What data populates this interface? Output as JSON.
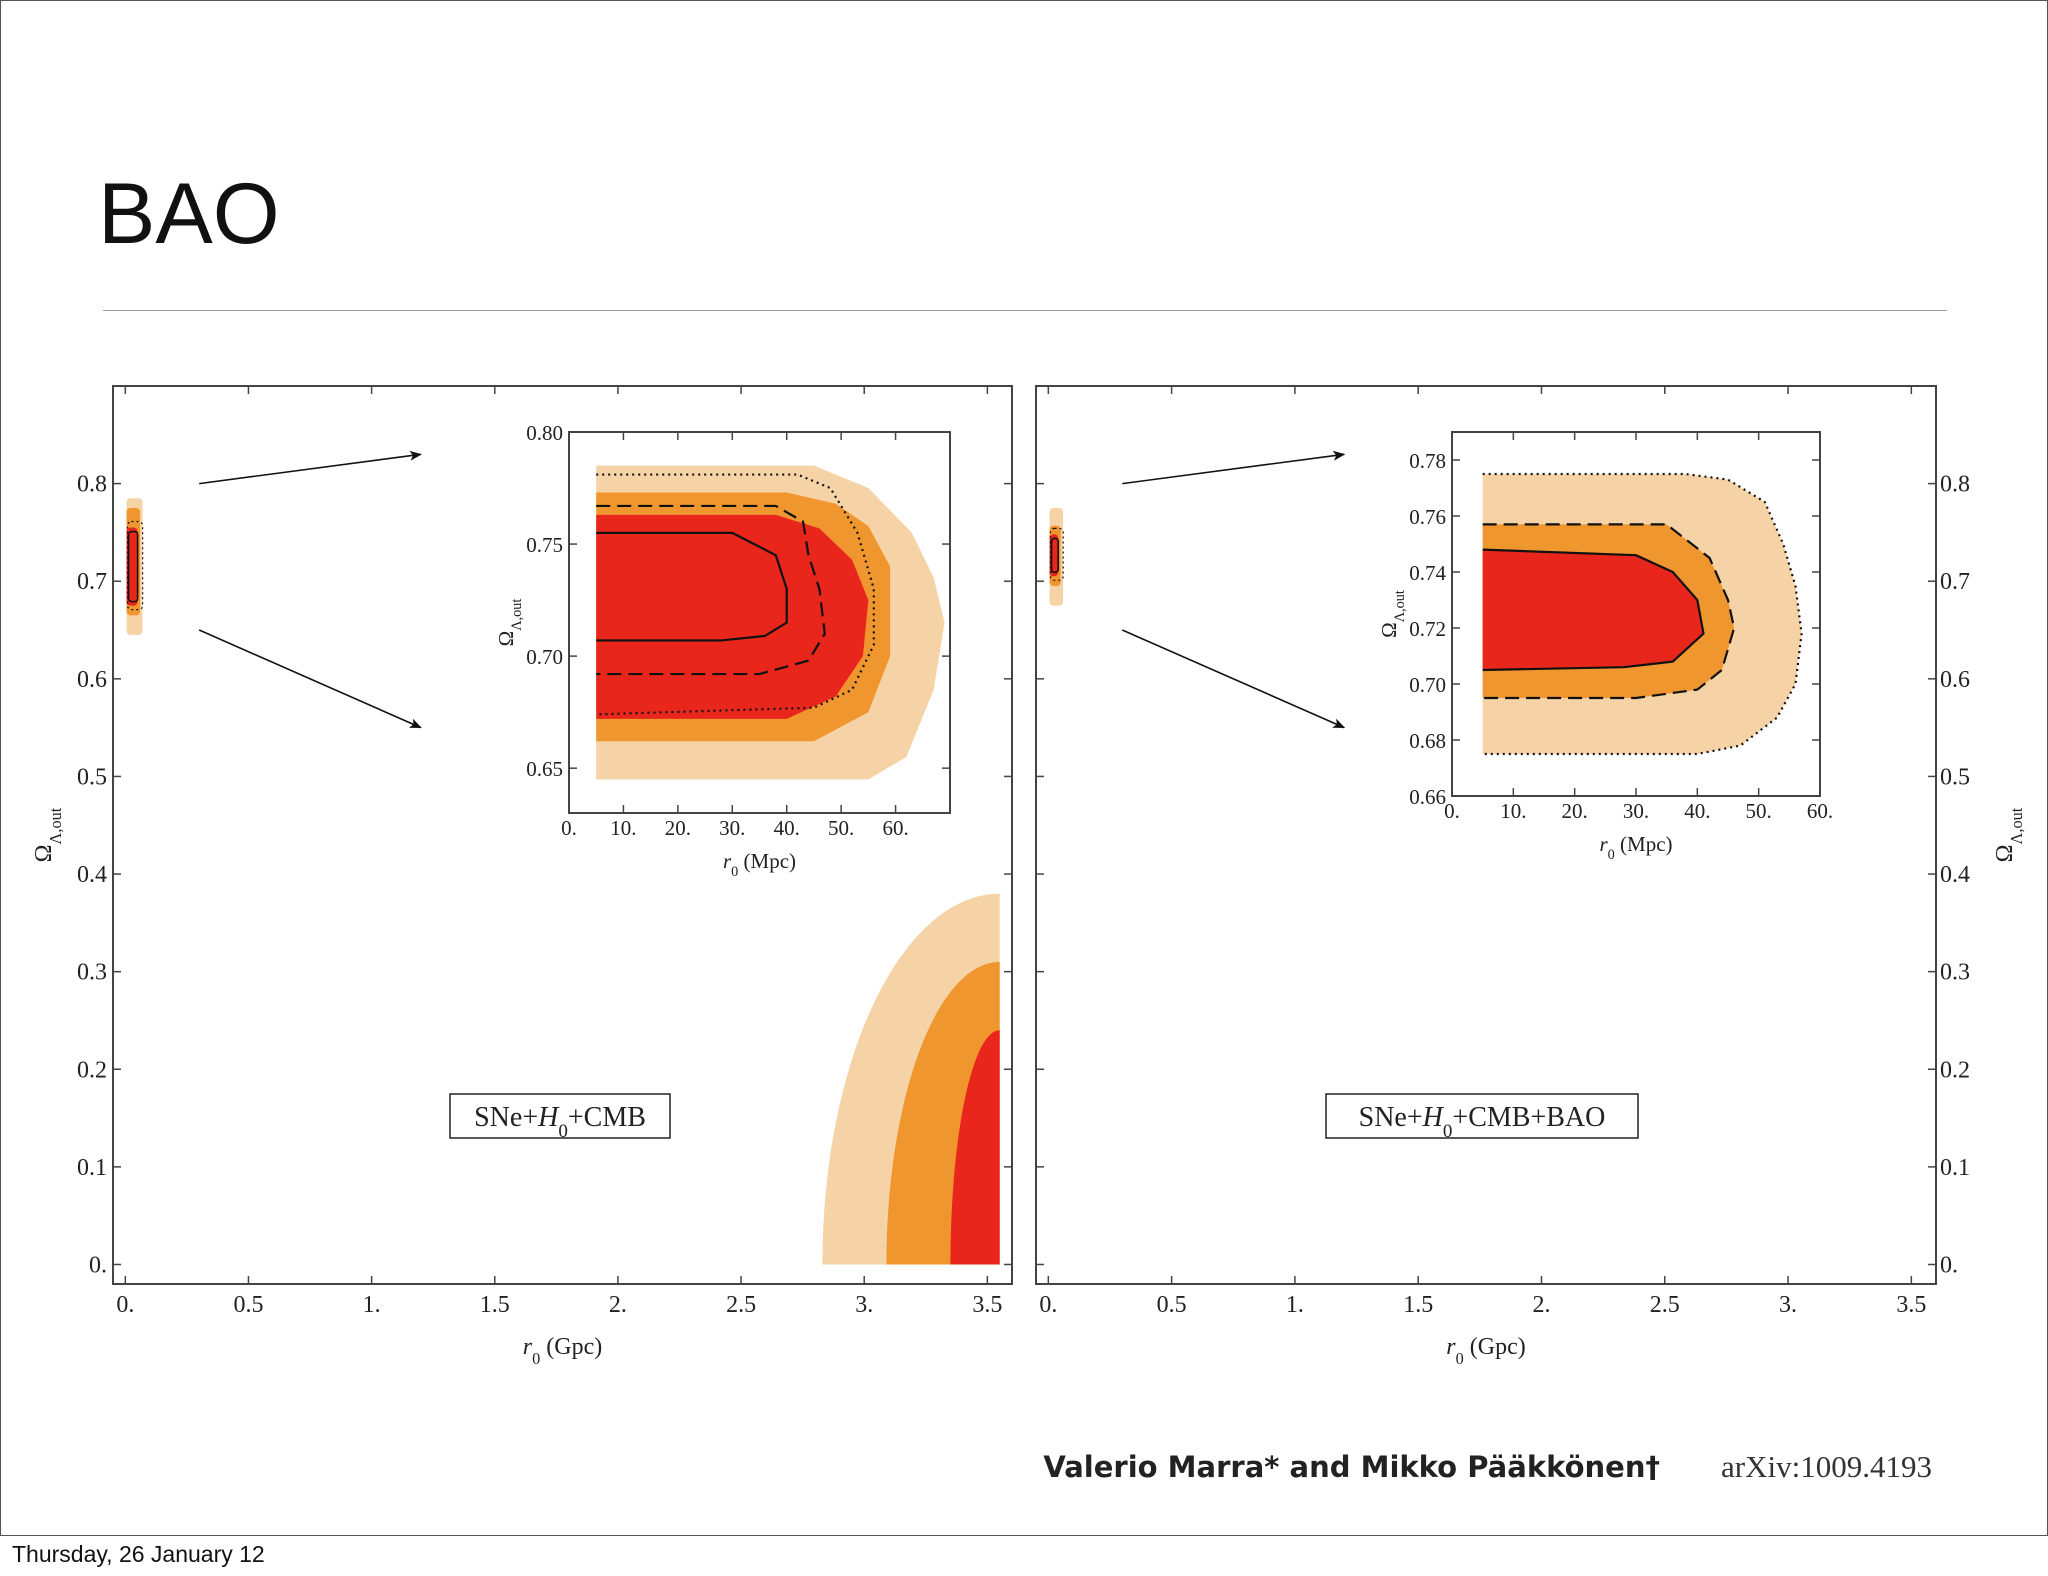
{
  "slide": {
    "title": "BAO",
    "footer_date": "Thursday, 26 January 12"
  },
  "credit": {
    "authors": "Valerio Marra* and Mikko Pääkkönen†",
    "arxiv": "arXiv:1009.4193"
  },
  "colors": {
    "inner": "#e8261c",
    "middle": "#f0962e",
    "outer": "#f6d3a6",
    "frame": "#444444",
    "arrow": "#111111"
  },
  "chart_data": [
    {
      "type": "contour",
      "id": "left-main",
      "label": "SNe+H0+CMB",
      "label_parts": [
        "SNe+",
        "H",
        "0",
        "+CMB"
      ],
      "xlabel": "r0 (Gpc)",
      "xlabel_parts": [
        "r",
        "0",
        " (Gpc)"
      ],
      "ylabel": "ΩΛ,out",
      "ylabel_parts": [
        "Ω",
        "Λ,out"
      ],
      "xlim": [
        -0.05,
        3.6
      ],
      "ylim": [
        -0.02,
        0.9
      ],
      "xticks": [
        0,
        0.5,
        1,
        1.5,
        2,
        2.5,
        3,
        3.5
      ],
      "xtick_labels": [
        "0.",
        "0.5",
        "1.",
        "1.5",
        "2.",
        "2.5",
        "3.",
        "3.5"
      ],
      "yticks": [
        0,
        0.1,
        0.2,
        0.3,
        0.4,
        0.5,
        0.6,
        0.7,
        0.8
      ],
      "ytick_labels": [
        "0.",
        "0.1",
        "0.2",
        "0.3",
        "0.4",
        "0.5",
        "0.6",
        "0.7",
        "0.8"
      ],
      "regions": [
        {
          "level": "outer",
          "kind": "box",
          "x": [
            0.005,
            0.07
          ],
          "y": [
            0.645,
            0.785
          ]
        },
        {
          "level": "middle",
          "kind": "box",
          "x": [
            0.005,
            0.06
          ],
          "y": [
            0.665,
            0.775
          ]
        },
        {
          "level": "inner",
          "kind": "box",
          "x": [
            0.005,
            0.05
          ],
          "y": [
            0.675,
            0.755
          ]
        },
        {
          "level": "outer",
          "kind": "quarter",
          "cx": 3.55,
          "cy": 0.0,
          "rx": 0.72,
          "ry": 0.38
        },
        {
          "level": "middle",
          "kind": "quarter",
          "cx": 3.55,
          "cy": 0.0,
          "rx": 0.46,
          "ry": 0.31
        },
        {
          "level": "inner",
          "kind": "quarter",
          "cx": 3.55,
          "cy": 0.0,
          "rx": 0.2,
          "ry": 0.24
        }
      ],
      "arrows": [
        {
          "from": [
            0.3,
            0.8
          ],
          "to": [
            1.2,
            0.83
          ]
        },
        {
          "from": [
            0.3,
            0.65
          ],
          "to": [
            1.2,
            0.55
          ]
        }
      ]
    },
    {
      "type": "contour",
      "id": "left-inset",
      "xlabel": "r0 (Mpc)",
      "xlabel_parts": [
        "r",
        "0",
        " (Mpc)"
      ],
      "ylabel": "ΩΛ,out",
      "ylabel_parts": [
        "Ω",
        "Λ,out"
      ],
      "xlim": [
        0,
        70
      ],
      "ylim": [
        0.63,
        0.8
      ],
      "xticks": [
        0,
        10,
        20,
        30,
        40,
        50,
        60
      ],
      "xtick_labels": [
        "0.",
        "10.",
        "20.",
        "30.",
        "40.",
        "50.",
        "60."
      ],
      "yticks": [
        0.65,
        0.7,
        0.75,
        0.8
      ],
      "ytick_labels": [
        "0.65",
        "0.70",
        "0.75",
        "0.80"
      ],
      "filled": [
        {
          "level": "outer",
          "points": [
            [
              5,
              0.785
            ],
            [
              45,
              0.785
            ],
            [
              55,
              0.775
            ],
            [
              63,
              0.755
            ],
            [
              67,
              0.735
            ],
            [
              69,
              0.715
            ],
            [
              67,
              0.685
            ],
            [
              62,
              0.655
            ],
            [
              55,
              0.645
            ],
            [
              5,
              0.645
            ]
          ]
        },
        {
          "level": "middle",
          "points": [
            [
              5,
              0.773
            ],
            [
              40,
              0.773
            ],
            [
              49,
              0.768
            ],
            [
              55,
              0.758
            ],
            [
              59,
              0.74
            ],
            [
              59,
              0.7
            ],
            [
              55,
              0.675
            ],
            [
              45,
              0.662
            ],
            [
              5,
              0.662
            ]
          ]
        },
        {
          "level": "inner",
          "points": [
            [
              5,
              0.763
            ],
            [
              38,
              0.763
            ],
            [
              46,
              0.757
            ],
            [
              52,
              0.743
            ],
            [
              55,
              0.725
            ],
            [
              54,
              0.7
            ],
            [
              49,
              0.682
            ],
            [
              40,
              0.672
            ],
            [
              5,
              0.672
            ]
          ]
        }
      ],
      "lines": [
        {
          "style": "solid",
          "points": [
            [
              5,
              0.755
            ],
            [
              30,
              0.755
            ],
            [
              38,
              0.745
            ],
            [
              40,
              0.73
            ],
            [
              40,
              0.715
            ],
            [
              36,
              0.709
            ],
            [
              28,
              0.707
            ],
            [
              5,
              0.707
            ]
          ]
        },
        {
          "style": "dashed",
          "points": [
            [
              5,
              0.767
            ],
            [
              38,
              0.767
            ],
            [
              43,
              0.76
            ],
            [
              44,
              0.745
            ],
            [
              46,
              0.73
            ],
            [
              47,
              0.71
            ],
            [
              44,
              0.698
            ],
            [
              35,
              0.692
            ],
            [
              5,
              0.692
            ]
          ]
        },
        {
          "style": "dotted",
          "points": [
            [
              5,
              0.781
            ],
            [
              42,
              0.781
            ],
            [
              48,
              0.775
            ],
            [
              53,
              0.755
            ],
            [
              56,
              0.73
            ],
            [
              56,
              0.705
            ],
            [
              52,
              0.685
            ],
            [
              45,
              0.677
            ],
            [
              5,
              0.674
            ]
          ]
        }
      ]
    },
    {
      "type": "contour",
      "id": "right-main",
      "label": "SNe+H0+CMB+BAO",
      "label_parts": [
        "SNe+",
        "H",
        "0",
        "+CMB+BAO"
      ],
      "xlabel": "r0 (Gpc)",
      "xlabel_parts": [
        "r",
        "0",
        " (Gpc)"
      ],
      "ylabel": "ΩΛ,out",
      "ylabel_parts": [
        "Ω",
        "Λ,out"
      ],
      "xlim": [
        -0.05,
        3.6
      ],
      "ylim": [
        -0.02,
        0.9
      ],
      "xticks": [
        0,
        0.5,
        1,
        1.5,
        2,
        2.5,
        3,
        3.5
      ],
      "xtick_labels": [
        "0.",
        "0.5",
        "1.",
        "1.5",
        "2.",
        "2.5",
        "3.",
        "3.5"
      ],
      "yticks": [
        0,
        0.1,
        0.2,
        0.3,
        0.4,
        0.5,
        0.6,
        0.7,
        0.8
      ],
      "ytick_labels": [
        "0.",
        "0.1",
        "0.2",
        "0.3",
        "0.4",
        "0.5",
        "0.6",
        "0.7",
        "0.8"
      ],
      "regions": [
        {
          "level": "outer",
          "kind": "box",
          "x": [
            0.005,
            0.06
          ],
          "y": [
            0.675,
            0.775
          ]
        },
        {
          "level": "middle",
          "kind": "box",
          "x": [
            0.005,
            0.05
          ],
          "y": [
            0.695,
            0.757
          ]
        },
        {
          "level": "inner",
          "kind": "box",
          "x": [
            0.005,
            0.04
          ],
          "y": [
            0.705,
            0.748
          ]
        }
      ],
      "arrows": [
        {
          "from": [
            0.3,
            0.8
          ],
          "to": [
            1.2,
            0.83
          ]
        },
        {
          "from": [
            0.3,
            0.65
          ],
          "to": [
            1.2,
            0.55
          ]
        }
      ]
    },
    {
      "type": "contour",
      "id": "right-inset",
      "xlabel": "r0 (Mpc)",
      "xlabel_parts": [
        "r",
        "0",
        " (Mpc)"
      ],
      "ylabel": "ΩΛ,out",
      "ylabel_parts": [
        "Ω",
        "Λ,out"
      ],
      "xlim": [
        0,
        60
      ],
      "ylim": [
        0.66,
        0.79
      ],
      "xticks": [
        0,
        10,
        20,
        30,
        40,
        50,
        60
      ],
      "xtick_labels": [
        "0.",
        "10.",
        "20.",
        "30.",
        "40.",
        "50.",
        "60."
      ],
      "yticks": [
        0.66,
        0.68,
        0.7,
        0.72,
        0.74,
        0.76,
        0.78
      ],
      "ytick_labels": [
        "0.66",
        "0.68",
        "0.70",
        "0.72",
        "0.74",
        "0.76",
        "0.78"
      ],
      "filled": [
        {
          "level": "outer",
          "points": [
            [
              5,
              0.775
            ],
            [
              38,
              0.775
            ],
            [
              45,
              0.773
            ],
            [
              51,
              0.765
            ],
            [
              54,
              0.75
            ],
            [
              56,
              0.735
            ],
            [
              57,
              0.718
            ],
            [
              56,
              0.7
            ],
            [
              53,
              0.688
            ],
            [
              47,
              0.678
            ],
            [
              40,
              0.675
            ],
            [
              5,
              0.675
            ]
          ]
        },
        {
          "level": "middle",
          "points": [
            [
              5,
              0.757
            ],
            [
              35,
              0.757
            ],
            [
              42,
              0.745
            ],
            [
              45,
              0.73
            ],
            [
              46,
              0.72
            ],
            [
              44,
              0.705
            ],
            [
              40,
              0.698
            ],
            [
              30,
              0.695
            ],
            [
              5,
              0.695
            ]
          ]
        },
        {
          "level": "inner",
          "points": [
            [
              5,
              0.748
            ],
            [
              30,
              0.746
            ],
            [
              36,
              0.74
            ],
            [
              40,
              0.73
            ],
            [
              41,
              0.718
            ],
            [
              36,
              0.708
            ],
            [
              28,
              0.706
            ],
            [
              5,
              0.705
            ]
          ]
        }
      ],
      "lines": [
        {
          "style": "solid",
          "points": [
            [
              5,
              0.748
            ],
            [
              30,
              0.746
            ],
            [
              36,
              0.74
            ],
            [
              40,
              0.73
            ],
            [
              41,
              0.718
            ],
            [
              36,
              0.708
            ],
            [
              28,
              0.706
            ],
            [
              5,
              0.705
            ]
          ]
        },
        {
          "style": "dashed",
          "points": [
            [
              5,
              0.757
            ],
            [
              35,
              0.757
            ],
            [
              42,
              0.745
            ],
            [
              45,
              0.73
            ],
            [
              46,
              0.72
            ],
            [
              44,
              0.705
            ],
            [
              40,
              0.698
            ],
            [
              30,
              0.695
            ],
            [
              5,
              0.695
            ]
          ]
        },
        {
          "style": "dotted",
          "points": [
            [
              5,
              0.775
            ],
            [
              38,
              0.775
            ],
            [
              45,
              0.773
            ],
            [
              51,
              0.765
            ],
            [
              54,
              0.75
            ],
            [
              56,
              0.735
            ],
            [
              57,
              0.718
            ],
            [
              56,
              0.7
            ],
            [
              53,
              0.688
            ],
            [
              47,
              0.678
            ],
            [
              40,
              0.675
            ],
            [
              5,
              0.675
            ]
          ]
        }
      ]
    }
  ]
}
